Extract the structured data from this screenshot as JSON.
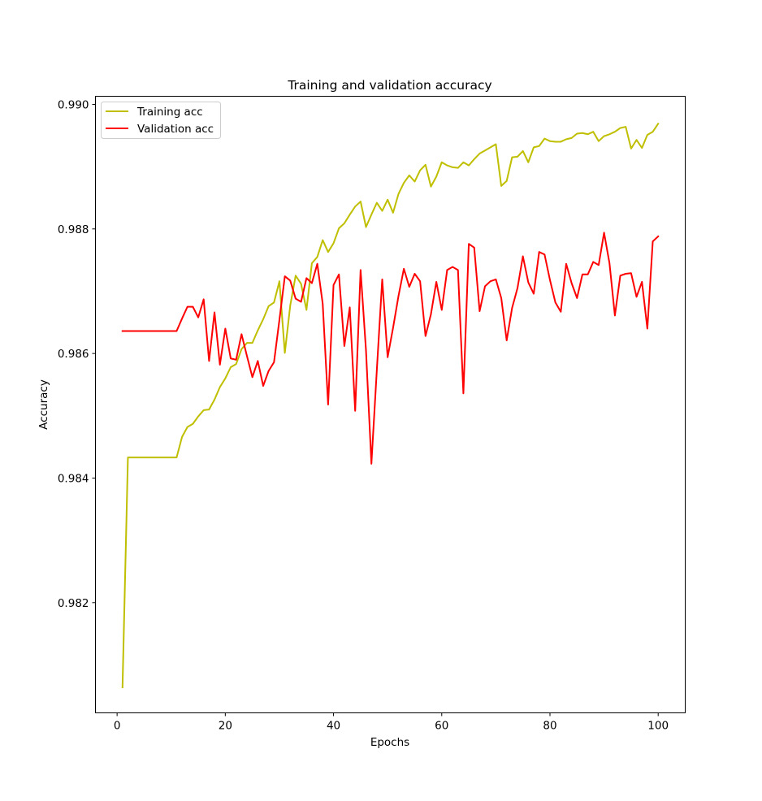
{
  "chart_data": {
    "type": "line",
    "title": "Training and validation accuracy",
    "xlabel": "Epochs",
    "ylabel": "Accuracy",
    "xlim": [
      -4,
      105
    ],
    "ylim": [
      0.98023,
      0.99013
    ],
    "xticks": [
      0,
      20,
      40,
      60,
      80,
      100
    ],
    "xtick_labels": [
      "0",
      "20",
      "40",
      "60",
      "80",
      "100"
    ],
    "yticks": [
      0.982,
      0.984,
      0.986,
      0.988,
      0.99
    ],
    "ytick_labels": [
      "0.982",
      "0.984",
      "0.986",
      "0.988",
      "0.990"
    ],
    "legend_position": "top-left",
    "grid": false,
    "series": [
      {
        "name": "Training acc",
        "color": "#bfbf00",
        "x": [
          1,
          2,
          3,
          4,
          5,
          6,
          7,
          8,
          9,
          10,
          11,
          12,
          13,
          14,
          15,
          16,
          17,
          18,
          19,
          20,
          21,
          22,
          23,
          24,
          25,
          26,
          27,
          28,
          29,
          30,
          31,
          32,
          33,
          34,
          35,
          36,
          37,
          38,
          39,
          40,
          41,
          42,
          43,
          44,
          45,
          46,
          47,
          48,
          49,
          50,
          51,
          52,
          53,
          54,
          55,
          56,
          57,
          58,
          59,
          60,
          61,
          62,
          63,
          64,
          65,
          66,
          67,
          68,
          69,
          70,
          71,
          72,
          73,
          74,
          75,
          76,
          77,
          78,
          79,
          80,
          81,
          82,
          83,
          84,
          85,
          86,
          87,
          88,
          89,
          90,
          91,
          92,
          93,
          94,
          95,
          96,
          97,
          98,
          99,
          100
        ],
        "values": [
          0.98064,
          0.98433,
          0.98433,
          0.98433,
          0.98433,
          0.98433,
          0.98433,
          0.98433,
          0.98433,
          0.98433,
          0.98433,
          0.98466,
          0.98482,
          0.98487,
          0.98499,
          0.98509,
          0.9851,
          0.98526,
          0.98546,
          0.9856,
          0.98578,
          0.98583,
          0.98607,
          0.98617,
          0.98617,
          0.98637,
          0.98655,
          0.98676,
          0.98682,
          0.98716,
          0.98601,
          0.98677,
          0.98725,
          0.98712,
          0.9867,
          0.98745,
          0.98755,
          0.98782,
          0.98763,
          0.98777,
          0.98801,
          0.98809,
          0.98823,
          0.98836,
          0.98844,
          0.98803,
          0.98823,
          0.98842,
          0.98829,
          0.98847,
          0.98826,
          0.98856,
          0.98874,
          0.98886,
          0.98876,
          0.98894,
          0.98903,
          0.98868,
          0.98884,
          0.98907,
          0.98902,
          0.98899,
          0.98898,
          0.98907,
          0.98902,
          0.98912,
          0.98921,
          0.98926,
          0.98931,
          0.98936,
          0.98869,
          0.98877,
          0.98915,
          0.98916,
          0.98925,
          0.98907,
          0.98931,
          0.98933,
          0.98945,
          0.98941,
          0.9894,
          0.9894,
          0.98944,
          0.98946,
          0.98953,
          0.98954,
          0.98952,
          0.98956,
          0.98941,
          0.98949,
          0.98952,
          0.98956,
          0.98962,
          0.98964,
          0.98929,
          0.98943,
          0.9893,
          0.98951,
          0.98956,
          0.98969
        ]
      },
      {
        "name": "Validation acc",
        "color": "#ff0000",
        "x": [
          1,
          2,
          3,
          4,
          5,
          6,
          7,
          8,
          9,
          10,
          11,
          12,
          13,
          14,
          15,
          16,
          17,
          18,
          19,
          20,
          21,
          22,
          23,
          24,
          25,
          26,
          27,
          28,
          29,
          30,
          31,
          32,
          33,
          34,
          35,
          36,
          37,
          38,
          39,
          40,
          41,
          42,
          43,
          44,
          45,
          46,
          47,
          48,
          49,
          50,
          51,
          52,
          53,
          54,
          55,
          56,
          57,
          58,
          59,
          60,
          61,
          62,
          63,
          64,
          65,
          66,
          67,
          68,
          69,
          70,
          71,
          72,
          73,
          74,
          75,
          76,
          77,
          78,
          79,
          80,
          81,
          82,
          83,
          84,
          85,
          86,
          87,
          88,
          89,
          90,
          91,
          92,
          93,
          94,
          95,
          96,
          97,
          98,
          99,
          100
        ],
        "values": [
          0.98636,
          0.98636,
          0.98636,
          0.98636,
          0.98636,
          0.98636,
          0.98636,
          0.98636,
          0.98636,
          0.98636,
          0.98636,
          0.98656,
          0.98675,
          0.98675,
          0.98658,
          0.98687,
          0.98588,
          0.98666,
          0.98582,
          0.9864,
          0.98592,
          0.9859,
          0.98631,
          0.98596,
          0.98562,
          0.98588,
          0.98548,
          0.98572,
          0.98586,
          0.98654,
          0.98724,
          0.98717,
          0.98688,
          0.98683,
          0.98721,
          0.98713,
          0.98744,
          0.9868,
          0.98518,
          0.9871,
          0.98727,
          0.98612,
          0.98674,
          0.98508,
          0.98734,
          0.98605,
          0.98423,
          0.98573,
          0.98719,
          0.98594,
          0.98641,
          0.98692,
          0.98736,
          0.98707,
          0.98728,
          0.98716,
          0.98628,
          0.98663,
          0.98715,
          0.9867,
          0.98734,
          0.98739,
          0.98734,
          0.98536,
          0.98776,
          0.9877,
          0.98668,
          0.98708,
          0.98716,
          0.98719,
          0.98689,
          0.98621,
          0.98673,
          0.98705,
          0.98756,
          0.98714,
          0.98696,
          0.98763,
          0.98759,
          0.98718,
          0.98682,
          0.98667,
          0.98744,
          0.98713,
          0.98689,
          0.98727,
          0.98727,
          0.98747,
          0.98742,
          0.98794,
          0.98745,
          0.98661,
          0.98725,
          0.98728,
          0.98729,
          0.98691,
          0.98715,
          0.9864,
          0.9878,
          0.98788
        ]
      }
    ]
  }
}
